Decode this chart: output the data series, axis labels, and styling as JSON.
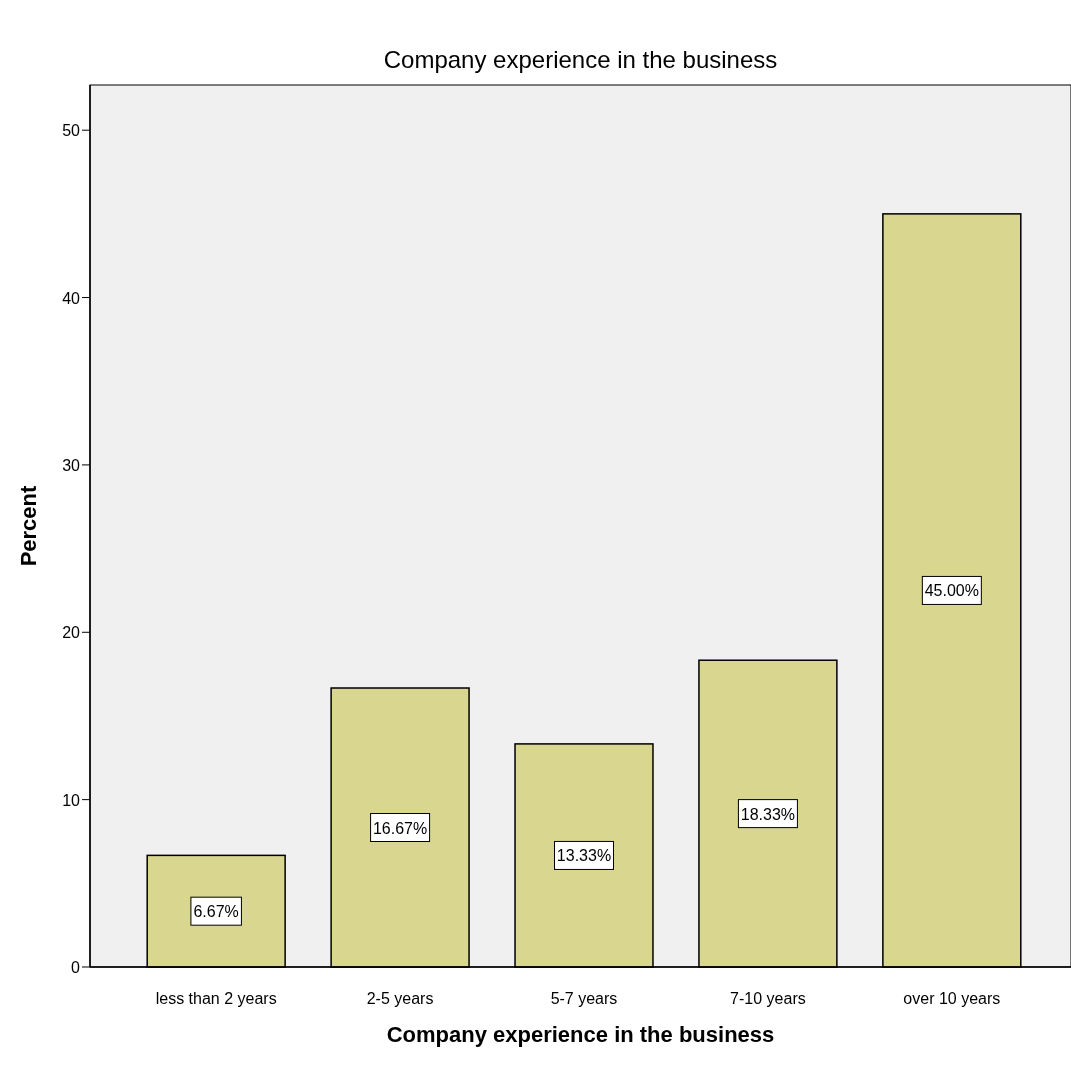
{
  "chart_data": {
    "type": "bar",
    "title": "Company experience in the business",
    "xlabel": "Company experience in the business",
    "ylabel": "Percent",
    "categories": [
      "less than 2 years",
      "2-5 years",
      "5-7 years",
      "7-10 years",
      "over 10 years"
    ],
    "values": [
      6.67,
      16.67,
      13.33,
      18.33,
      45.0
    ],
    "value_labels": [
      "6.67%",
      "16.67%",
      "13.33%",
      "18.33%",
      "45.00%"
    ],
    "color": "#d8d68f",
    "ylim": [
      0,
      52.7
    ],
    "yticks": [
      0,
      10,
      20,
      30,
      40,
      50
    ],
    "grid": false
  }
}
